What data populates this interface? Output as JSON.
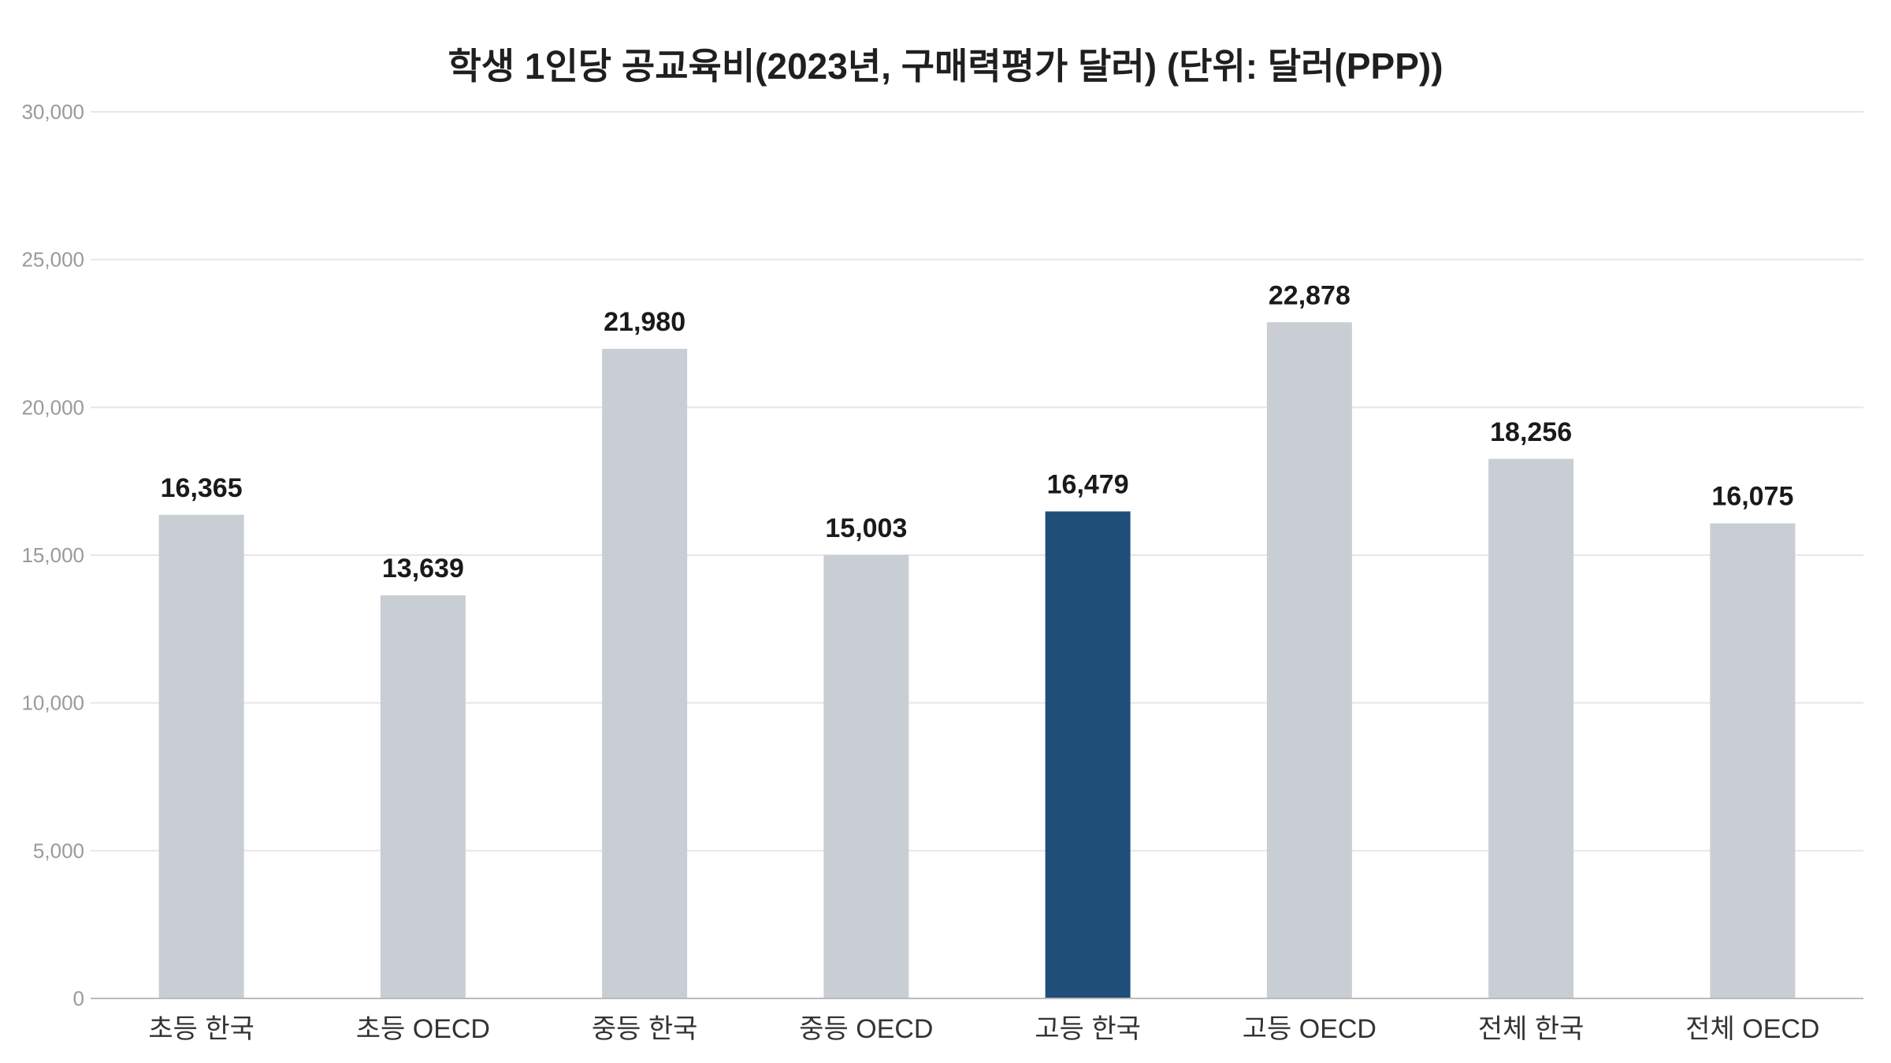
{
  "chart_data": {
    "type": "bar",
    "title": "학생 1인당 공교육비(2023년, 구매력평가 달러) (단위: 달러(PPP))",
    "xlabel": "",
    "ylabel": "",
    "categories": [
      "초등 한국",
      "초등 OECD",
      "중등 한국",
      "중등 OECD",
      "고등 한국",
      "고등 OECD",
      "전체 한국",
      "전체 OECD"
    ],
    "values": [
      16365,
      13639,
      21980,
      15003,
      16479,
      22878,
      18256,
      16075
    ],
    "value_labels": [
      "16,365",
      "13,639",
      "21,980",
      "15,003",
      "16,479",
      "22,878",
      "18,256",
      "16,075"
    ],
    "ylim": [
      0,
      30000
    ],
    "yticks": [
      0,
      5000,
      10000,
      15000,
      20000,
      25000,
      30000
    ],
    "ytick_labels": [
      "0",
      "5,000",
      "10,000",
      "15,000",
      "20,000",
      "25,000",
      "30,000"
    ],
    "grid": true,
    "legend": "none",
    "highlight_index": 4,
    "colors": {
      "bar": "#c9cdd4",
      "highlight": "#1f4e79",
      "grid": "#e6e6e6",
      "axis": "#bbbbbb"
    }
  }
}
